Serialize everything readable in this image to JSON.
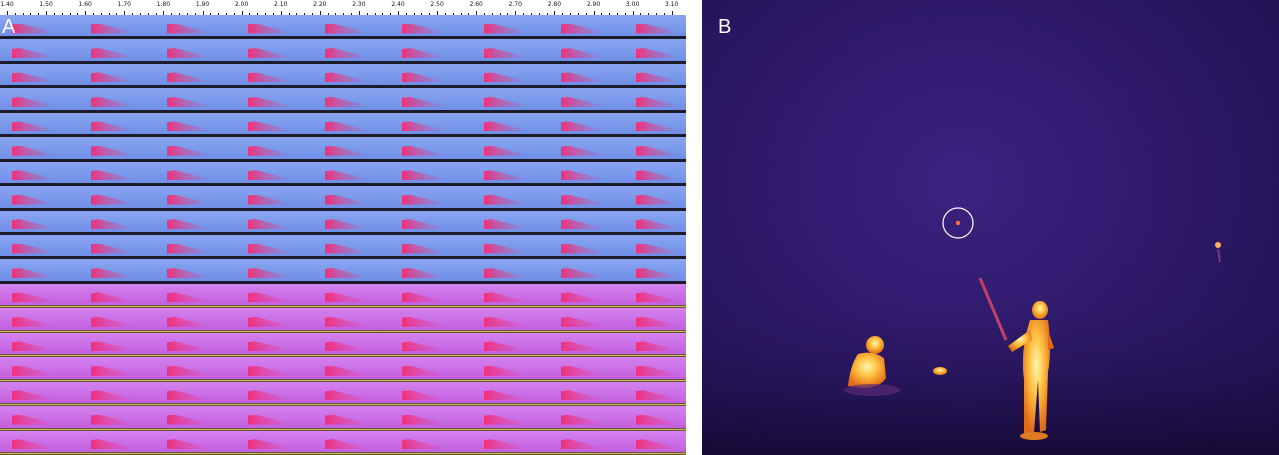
{
  "panel_a": {
    "label": "A",
    "ruler_ticks": [
      "1.40",
      "1.50",
      "1.60",
      "1.70",
      "1.80",
      "1.90",
      "2.00",
      "2.10",
      "2.20",
      "2.30",
      "2.40",
      "2.50",
      "2.60",
      "2.70",
      "2.80",
      "2.90",
      "3.00",
      "3.10"
    ],
    "strip_count": 18,
    "colors": {
      "background_blue": "#6f8fe8",
      "background_magenta": "#c35fe0",
      "call": "#f0307a",
      "separator": "#1b1b2a"
    }
  },
  "panel_b": {
    "label": "B",
    "colors": {
      "background": "#2e1a6a",
      "hot": "#ffe070",
      "warm": "#f08a20",
      "marker_circle": "#ffffff"
    }
  }
}
